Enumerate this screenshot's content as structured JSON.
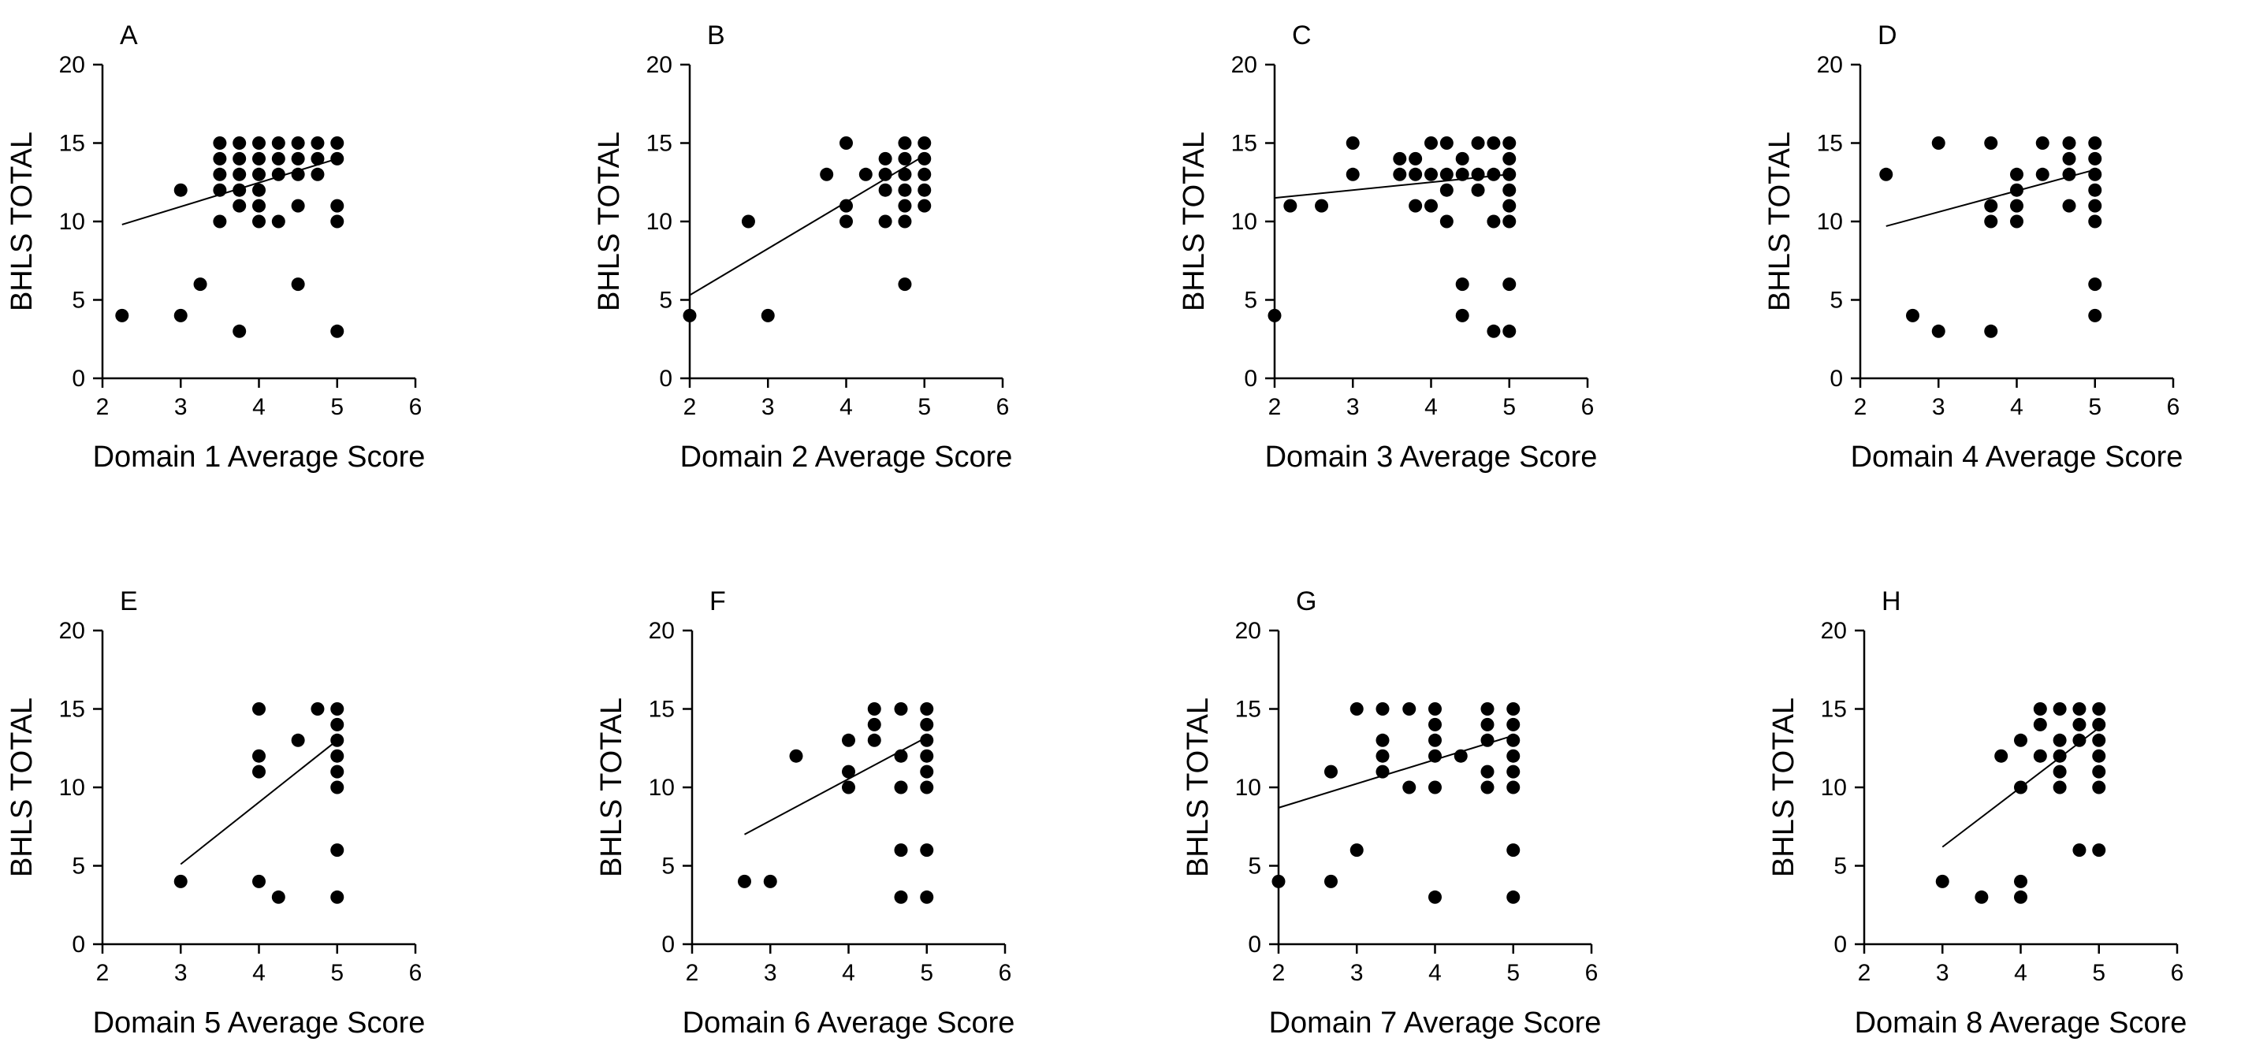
{
  "chart_data": [
    {
      "type": "scatter",
      "panel_label": "A",
      "xlabel": "Domain 1 Average Score",
      "ylabel": "BHLS TOTAL",
      "xlim": [
        2,
        6
      ],
      "ylim": [
        0,
        20
      ],
      "x_ticks": [
        "2",
        "3",
        "4",
        "5",
        "6"
      ],
      "y_ticks": [
        "0",
        "5",
        "10",
        "15",
        "20"
      ],
      "grid": false,
      "legend": "none",
      "points": [
        [
          2.25,
          4
        ],
        [
          3,
          4
        ],
        [
          3,
          12
        ],
        [
          3.25,
          6
        ],
        [
          3.5,
          15
        ],
        [
          3.5,
          14
        ],
        [
          3.5,
          13
        ],
        [
          3.5,
          12
        ],
        [
          3.5,
          10
        ],
        [
          3.75,
          15
        ],
        [
          3.75,
          14
        ],
        [
          3.75,
          13
        ],
        [
          3.75,
          12
        ],
        [
          3.75,
          11
        ],
        [
          3.75,
          3
        ],
        [
          4,
          15
        ],
        [
          4,
          14
        ],
        [
          4,
          13
        ],
        [
          4,
          12
        ],
        [
          4,
          11
        ],
        [
          4,
          10
        ],
        [
          4.25,
          15
        ],
        [
          4.25,
          14
        ],
        [
          4.25,
          13
        ],
        [
          4.25,
          10
        ],
        [
          4.5,
          15
        ],
        [
          4.5,
          14
        ],
        [
          4.5,
          13
        ],
        [
          4.5,
          11
        ],
        [
          4.5,
          6
        ],
        [
          4.75,
          15
        ],
        [
          4.75,
          14
        ],
        [
          4.75,
          13
        ],
        [
          5,
          15
        ],
        [
          5,
          14
        ],
        [
          5,
          11
        ],
        [
          5,
          10
        ],
        [
          5,
          3
        ]
      ],
      "fit_line": [
        [
          2.25,
          9.8
        ],
        [
          5,
          14
        ]
      ]
    },
    {
      "type": "scatter",
      "panel_label": "B",
      "xlabel": "Domain 2 Average Score",
      "ylabel": "BHLS TOTAL",
      "xlim": [
        2,
        6
      ],
      "ylim": [
        0,
        20
      ],
      "x_ticks": [
        "2",
        "3",
        "4",
        "5",
        "6"
      ],
      "y_ticks": [
        "0",
        "5",
        "10",
        "15",
        "20"
      ],
      "grid": false,
      "legend": "none",
      "points": [
        [
          2,
          4
        ],
        [
          2.75,
          10
        ],
        [
          3,
          4
        ],
        [
          3.75,
          13
        ],
        [
          4,
          15
        ],
        [
          4,
          11
        ],
        [
          4,
          10
        ],
        [
          4.25,
          13
        ],
        [
          4.5,
          14
        ],
        [
          4.5,
          13
        ],
        [
          4.5,
          12
        ],
        [
          4.5,
          10
        ],
        [
          4.75,
          15
        ],
        [
          4.75,
          14
        ],
        [
          4.75,
          13
        ],
        [
          4.75,
          12
        ],
        [
          4.75,
          11
        ],
        [
          4.75,
          10
        ],
        [
          4.75,
          6
        ],
        [
          5,
          15
        ],
        [
          5,
          14
        ],
        [
          5,
          13
        ],
        [
          5,
          12
        ],
        [
          5,
          11
        ]
      ],
      "fit_line": [
        [
          2,
          5.3
        ],
        [
          5,
          14.2
        ]
      ]
    },
    {
      "type": "scatter",
      "panel_label": "C",
      "xlabel": "Domain 3 Average Score",
      "ylabel": "BHLS TOTAL",
      "xlim": [
        2,
        6
      ],
      "ylim": [
        0,
        20
      ],
      "x_ticks": [
        "2",
        "3",
        "4",
        "5",
        "6"
      ],
      "y_ticks": [
        "0",
        "5",
        "10",
        "15",
        "20"
      ],
      "grid": false,
      "legend": "none",
      "points": [
        [
          2,
          4
        ],
        [
          2.2,
          11
        ],
        [
          2.6,
          11
        ],
        [
          3,
          15
        ],
        [
          3,
          13
        ],
        [
          3.6,
          14
        ],
        [
          3.6,
          13
        ],
        [
          3.8,
          14
        ],
        [
          3.8,
          13
        ],
        [
          3.8,
          11
        ],
        [
          4,
          15
        ],
        [
          4,
          13
        ],
        [
          4,
          11
        ],
        [
          4.2,
          15
        ],
        [
          4.2,
          13
        ],
        [
          4.2,
          12
        ],
        [
          4.2,
          10
        ],
        [
          4.4,
          14
        ],
        [
          4.4,
          13
        ],
        [
          4.4,
          6
        ],
        [
          4.4,
          4
        ],
        [
          4.6,
          15
        ],
        [
          4.6,
          13
        ],
        [
          4.6,
          12
        ],
        [
          4.8,
          15
        ],
        [
          4.8,
          13
        ],
        [
          4.8,
          10
        ],
        [
          4.8,
          3
        ],
        [
          5,
          15
        ],
        [
          5,
          14
        ],
        [
          5,
          13
        ],
        [
          5,
          12
        ],
        [
          5,
          11
        ],
        [
          5,
          10
        ],
        [
          5,
          6
        ],
        [
          5,
          3
        ]
      ],
      "fit_line": [
        [
          2,
          11.5
        ],
        [
          5,
          13
        ]
      ]
    },
    {
      "type": "scatter",
      "panel_label": "D",
      "xlabel": "Domain 4 Average Score",
      "ylabel": "BHLS TOTAL",
      "xlim": [
        2,
        6
      ],
      "ylim": [
        0,
        20
      ],
      "x_ticks": [
        "2",
        "3",
        "4",
        "5",
        "6"
      ],
      "y_ticks": [
        "0",
        "5",
        "10",
        "15",
        "20"
      ],
      "grid": false,
      "legend": "none",
      "points": [
        [
          2.33,
          13
        ],
        [
          2.67,
          4
        ],
        [
          3,
          15
        ],
        [
          3,
          3
        ],
        [
          3.67,
          15
        ],
        [
          3.67,
          11
        ],
        [
          3.67,
          10
        ],
        [
          3.67,
          3
        ],
        [
          4,
          13
        ],
        [
          4,
          12
        ],
        [
          4,
          11
        ],
        [
          4,
          10
        ],
        [
          4.33,
          15
        ],
        [
          4.33,
          13
        ],
        [
          4.67,
          15
        ],
        [
          4.67,
          14
        ],
        [
          4.67,
          13
        ],
        [
          4.67,
          11
        ],
        [
          5,
          15
        ],
        [
          5,
          14
        ],
        [
          5,
          13
        ],
        [
          5,
          12
        ],
        [
          5,
          11
        ],
        [
          5,
          10
        ],
        [
          5,
          6
        ],
        [
          5,
          4
        ]
      ],
      "fit_line": [
        [
          2.33,
          9.7
        ],
        [
          5,
          13.3
        ]
      ]
    },
    {
      "type": "scatter",
      "panel_label": "E",
      "xlabel": "Domain 5 Average Score",
      "ylabel": "BHLS TOTAL",
      "xlim": [
        2,
        6
      ],
      "ylim": [
        0,
        20
      ],
      "x_ticks": [
        "2",
        "3",
        "4",
        "5",
        "6"
      ],
      "y_ticks": [
        "0",
        "5",
        "10",
        "15",
        "20"
      ],
      "grid": false,
      "legend": "none",
      "points": [
        [
          3,
          4
        ],
        [
          4,
          15
        ],
        [
          4,
          12
        ],
        [
          4,
          11
        ],
        [
          4,
          4
        ],
        [
          4.25,
          3
        ],
        [
          4.5,
          13
        ],
        [
          4.75,
          15
        ],
        [
          5,
          15
        ],
        [
          5,
          14
        ],
        [
          5,
          13
        ],
        [
          5,
          12
        ],
        [
          5,
          11
        ],
        [
          5,
          10
        ],
        [
          5,
          6
        ],
        [
          5,
          3
        ]
      ],
      "fit_line": [
        [
          3,
          5.1
        ],
        [
          5,
          13
        ]
      ]
    },
    {
      "type": "scatter",
      "panel_label": "F",
      "xlabel": "Domain 6 Average Score",
      "ylabel": "BHLS TOTAL",
      "xlim": [
        2,
        6
      ],
      "ylim": [
        0,
        20
      ],
      "x_ticks": [
        "2",
        "3",
        "4",
        "5",
        "6"
      ],
      "y_ticks": [
        "0",
        "5",
        "10",
        "15",
        "20"
      ],
      "grid": false,
      "legend": "none",
      "points": [
        [
          2.67,
          4
        ],
        [
          3,
          4
        ],
        [
          3.33,
          12
        ],
        [
          4,
          13
        ],
        [
          4,
          11
        ],
        [
          4,
          10
        ],
        [
          4.33,
          15
        ],
        [
          4.33,
          14
        ],
        [
          4.33,
          13
        ],
        [
          4.67,
          15
        ],
        [
          4.67,
          12
        ],
        [
          4.67,
          10
        ],
        [
          4.67,
          6
        ],
        [
          4.67,
          3
        ],
        [
          5,
          15
        ],
        [
          5,
          14
        ],
        [
          5,
          13
        ],
        [
          5,
          12
        ],
        [
          5,
          11
        ],
        [
          5,
          10
        ],
        [
          5,
          6
        ],
        [
          5,
          3
        ]
      ],
      "fit_line": [
        [
          2.67,
          7
        ],
        [
          5,
          13.2
        ]
      ]
    },
    {
      "type": "scatter",
      "panel_label": "G",
      "xlabel": "Domain 7 Average Score",
      "ylabel": "BHLS TOTAL",
      "xlim": [
        2,
        6
      ],
      "ylim": [
        0,
        20
      ],
      "x_ticks": [
        "2",
        "3",
        "4",
        "5",
        "6"
      ],
      "y_ticks": [
        "0",
        "5",
        "10",
        "15",
        "20"
      ],
      "grid": false,
      "legend": "none",
      "points": [
        [
          2,
          4
        ],
        [
          2.67,
          11
        ],
        [
          2.67,
          4
        ],
        [
          3,
          15
        ],
        [
          3,
          6
        ],
        [
          3.33,
          15
        ],
        [
          3.33,
          13
        ],
        [
          3.33,
          12
        ],
        [
          3.33,
          11
        ],
        [
          3.67,
          15
        ],
        [
          3.67,
          10
        ],
        [
          4,
          15
        ],
        [
          4,
          14
        ],
        [
          4,
          13
        ],
        [
          4,
          12
        ],
        [
          4,
          10
        ],
        [
          4,
          3
        ],
        [
          4.33,
          12
        ],
        [
          4.67,
          15
        ],
        [
          4.67,
          14
        ],
        [
          4.67,
          13
        ],
        [
          4.67,
          11
        ],
        [
          4.67,
          10
        ],
        [
          5,
          15
        ],
        [
          5,
          14
        ],
        [
          5,
          13
        ],
        [
          5,
          12
        ],
        [
          5,
          11
        ],
        [
          5,
          10
        ],
        [
          5,
          6
        ],
        [
          5,
          3
        ]
      ],
      "fit_line": [
        [
          2,
          8.7
        ],
        [
          5,
          13.3
        ]
      ]
    },
    {
      "type": "scatter",
      "panel_label": "H",
      "xlabel": "Domain 8 Average Score",
      "ylabel": "BHLS TOTAL",
      "xlim": [
        2,
        6
      ],
      "ylim": [
        0,
        20
      ],
      "x_ticks": [
        "2",
        "3",
        "4",
        "5",
        "6"
      ],
      "y_ticks": [
        "0",
        "5",
        "10",
        "15",
        "20"
      ],
      "grid": false,
      "legend": "none",
      "points": [
        [
          3,
          4
        ],
        [
          3.5,
          3
        ],
        [
          3.75,
          12
        ],
        [
          4,
          13
        ],
        [
          4,
          10
        ],
        [
          4,
          4
        ],
        [
          4,
          3
        ],
        [
          4.25,
          15
        ],
        [
          4.25,
          14
        ],
        [
          4.25,
          12
        ],
        [
          4.5,
          15
        ],
        [
          4.5,
          13
        ],
        [
          4.5,
          12
        ],
        [
          4.5,
          11
        ],
        [
          4.5,
          10
        ],
        [
          4.75,
          15
        ],
        [
          4.75,
          14
        ],
        [
          4.75,
          13
        ],
        [
          4.75,
          6
        ],
        [
          5,
          15
        ],
        [
          5,
          14
        ],
        [
          5,
          13
        ],
        [
          5,
          12
        ],
        [
          5,
          11
        ],
        [
          5,
          10
        ],
        [
          5,
          6
        ]
      ],
      "fit_line": [
        [
          3,
          6.2
        ],
        [
          5,
          13.8
        ]
      ]
    }
  ]
}
